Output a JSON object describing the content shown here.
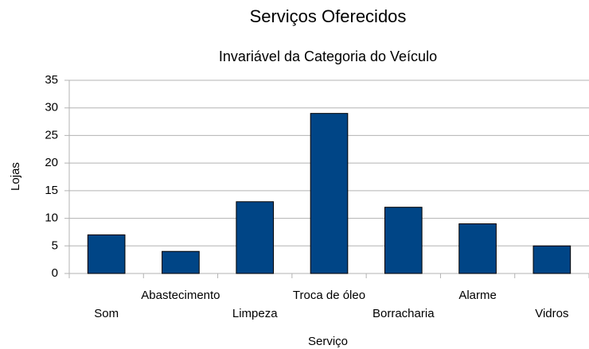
{
  "chart_data": {
    "type": "bar",
    "title": "Serviços Oferecidos",
    "subtitle": "Invariável da Categoria do Veículo",
    "x_label": "Serviço",
    "y_label": "Lojas",
    "categories": [
      "Som",
      "Abastecimento",
      "Limpeza",
      "Troca de óleo",
      "Borracharia",
      "Alarme",
      "Vidros"
    ],
    "values": [
      7,
      4,
      13,
      29,
      12,
      9,
      5
    ],
    "color": "#004586",
    "ylim": [
      0,
      35
    ],
    "yticks": [
      0,
      5,
      10,
      15,
      20,
      25,
      30,
      35
    ],
    "grid": true
  }
}
